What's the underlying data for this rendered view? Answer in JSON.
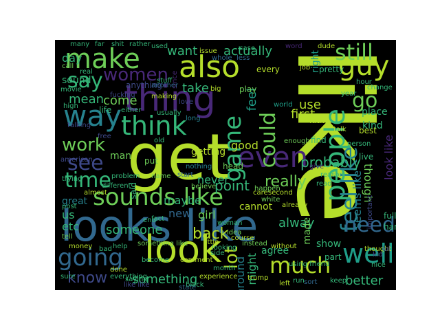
{
  "colors": {
    "background": "#000000",
    "palette_name": "viridis",
    "yellow_green": "#b5de2b",
    "green": "#6ece58",
    "teal_green": "#35b779",
    "teal": "#1f9e89",
    "blue_teal": "#26828e",
    "blue": "#31688e",
    "indigo": "#3e4989",
    "purple": "#482878",
    "dark_purple": "#440154"
  },
  "words": [
    {
      "text": "like",
      "color": "#b5de2b"
    },
    {
      "text": "get",
      "color": "#b5de2b"
    },
    {
      "text": "looks like",
      "color": "#31688e"
    },
    {
      "text": "thing",
      "color": "#482878"
    },
    {
      "text": "look",
      "color": "#b5de2b"
    },
    {
      "text": "make",
      "color": "#6ece58"
    },
    {
      "text": "also",
      "color": "#b5de2b"
    },
    {
      "text": "way",
      "color": "#26828e"
    },
    {
      "text": "people",
      "color": "#35b779"
    },
    {
      "text": "even",
      "color": "#482878"
    },
    {
      "text": "guy",
      "color": "#b5de2b"
    },
    {
      "text": "still",
      "color": "#6ece58"
    },
    {
      "text": "think",
      "color": "#35b779"
    },
    {
      "text": "sounds like",
      "color": "#6ece58"
    },
    {
      "text": "going",
      "color": "#31688e"
    },
    {
      "text": "well",
      "color": "#1f9e89"
    },
    {
      "text": "feel like",
      "color": "#26828e"
    },
    {
      "text": "need",
      "color": "#31688e"
    },
    {
      "text": "much",
      "color": "#b5de2b"
    },
    {
      "text": "game",
      "color": "#35b779"
    },
    {
      "text": "could",
      "color": "#6ece58"
    },
    {
      "text": "say",
      "color": "#35b779"
    },
    {
      "text": "women",
      "color": "#482878"
    },
    {
      "text": "see",
      "color": "#3e4989"
    },
    {
      "text": "time",
      "color": "#35b779"
    },
    {
      "text": "work",
      "color": "#6ece58"
    },
    {
      "text": "know",
      "color": "#3e4989"
    },
    {
      "text": "lot",
      "color": "#b5de2b"
    },
    {
      "text": "go",
      "color": "#6ece58"
    },
    {
      "text": "actually",
      "color": "#35b779"
    },
    {
      "text": "want",
      "color": "#35b779"
    },
    {
      "text": "something",
      "color": "#35b779"
    },
    {
      "text": "back",
      "color": "#b5de2b"
    },
    {
      "text": "point",
      "color": "#35b779"
    },
    {
      "text": "really",
      "color": "#6ece58"
    },
    {
      "text": "mean",
      "color": "#35b779"
    },
    {
      "text": "come",
      "color": "#6ece58"
    },
    {
      "text": "take",
      "color": "#35b779"
    },
    {
      "text": "feel",
      "color": "#1f9e89"
    },
    {
      "text": "use",
      "color": "#b5de2b"
    },
    {
      "text": "first",
      "color": "#b5de2b"
    },
    {
      "text": "probably",
      "color": "#35b779"
    },
    {
      "text": "though",
      "color": "#6ece58"
    },
    {
      "text": "look like",
      "color": "#482878"
    },
    {
      "text": "seems like",
      "color": "#26828e"
    },
    {
      "text": "better",
      "color": "#35b779"
    },
    {
      "text": "someone",
      "color": "#35b779"
    },
    {
      "text": "maybe",
      "color": "#35b779"
    },
    {
      "text": "never",
      "color": "#35b779"
    },
    {
      "text": "new",
      "color": "#31688e"
    },
    {
      "text": "girl",
      "color": "#6ece58"
    },
    {
      "text": "cannot",
      "color": "#b5de2b"
    },
    {
      "text": "alway",
      "color": "#35b779"
    },
    {
      "text": "good",
      "color": "#b5de2b"
    },
    {
      "text": "man",
      "color": "#6ece58"
    },
    {
      "text": "etc",
      "color": "#35b779"
    },
    {
      "text": "us",
      "color": "#35b779"
    },
    {
      "text": "day",
      "color": "#35b779"
    },
    {
      "text": "sound",
      "color": "#35b779"
    },
    {
      "text": "said",
      "color": "#35b779"
    },
    {
      "text": "around",
      "color": "#26828e"
    },
    {
      "text": "might",
      "color": "#35b779"
    },
    {
      "text": "made",
      "color": "#6ece58"
    },
    {
      "text": "show",
      "color": "#35b779"
    },
    {
      "text": "right",
      "color": "#1f9e89"
    },
    {
      "text": "agree",
      "color": "#35b779"
    },
    {
      "text": "getting",
      "color": "#b5de2b"
    },
    {
      "text": "anything",
      "color": "#3e4989"
    },
    {
      "text": "life",
      "color": "#35b779"
    },
    {
      "text": "place",
      "color": "#35b779"
    },
    {
      "text": "kind",
      "color": "#35b779"
    },
    {
      "text": "put",
      "color": "#6ece58"
    },
    {
      "text": "every",
      "color": "#b5de2b"
    },
    {
      "text": "pretty",
      "color": "#35b779"
    },
    {
      "text": "part",
      "color": "#35b779"
    },
    {
      "text": "nothing",
      "color": "#26828e"
    },
    {
      "text": "head",
      "color": "#6ece58"
    },
    {
      "text": "great",
      "color": "#26828e"
    },
    {
      "text": "live",
      "color": "#35b779"
    },
    {
      "text": "best",
      "color": "#b5de2b"
    },
    {
      "text": "find",
      "color": "#35b779"
    },
    {
      "text": "hard",
      "color": "#35b779"
    },
    {
      "text": "full",
      "color": "#35b779"
    },
    {
      "text": "since",
      "color": "#482878"
    },
    {
      "text": "whole",
      "color": "#31688e"
    },
    {
      "text": "less",
      "color": "#31688e"
    },
    {
      "text": "issue",
      "color": "#b5de2b"
    },
    {
      "text": "used",
      "color": "#35b779"
    },
    {
      "text": "many",
      "color": "#35b779"
    },
    {
      "text": "far",
      "color": "#35b779"
    },
    {
      "text": "shit",
      "color": "#35b779"
    },
    {
      "text": "rather",
      "color": "#35b779"
    },
    {
      "text": "dude",
      "color": "#b5de2b"
    },
    {
      "text": "word",
      "color": "#482878"
    },
    {
      "text": "hour",
      "color": "#35b779"
    },
    {
      "text": "change",
      "color": "#35b779"
    },
    {
      "text": "year",
      "color": "#35b779"
    },
    {
      "text": "job",
      "color": "#b5de2b"
    },
    {
      "text": "movie",
      "color": "#35b779"
    },
    {
      "text": "fucking",
      "color": "#3e4989"
    },
    {
      "text": "another",
      "color": "#31688e"
    },
    {
      "text": "making",
      "color": "#b5de2b"
    },
    {
      "text": "play",
      "color": "#6ece58"
    },
    {
      "text": "big",
      "color": "#b5de2b"
    },
    {
      "text": "world",
      "color": "#1f9e89"
    },
    {
      "text": "talk",
      "color": "#b5de2b"
    },
    {
      "text": "enough",
      "color": "#6ece58"
    },
    {
      "text": "fuck",
      "color": "#b5de2b"
    },
    {
      "text": "reason",
      "color": "#35b779"
    },
    {
      "text": "give",
      "color": "#482878"
    },
    {
      "text": "read",
      "color": "#35b779"
    },
    {
      "text": "person",
      "color": "#35b779"
    },
    {
      "text": "second",
      "color": "#b5de2b"
    },
    {
      "text": "care",
      "color": "#b5de2b"
    },
    {
      "text": "believe",
      "color": "#6ece58"
    },
    {
      "text": "almost",
      "color": "#b5de2b"
    },
    {
      "text": "problem",
      "color": "#35b779"
    },
    {
      "text": "different",
      "color": "#35b779"
    },
    {
      "text": "american",
      "color": "#3e4989"
    },
    {
      "text": "trying",
      "color": "#35b779"
    },
    {
      "text": "real",
      "color": "#35b779"
    },
    {
      "text": "call",
      "color": "#6ece58"
    },
    {
      "text": "stuff",
      "color": "#35b779"
    },
    {
      "text": "either",
      "color": "#35b779"
    },
    {
      "text": "high",
      "color": "#35b779"
    },
    {
      "text": "long",
      "color": "#26828e"
    },
    {
      "text": "usually",
      "color": "#35b779"
    },
    {
      "text": "old",
      "color": "#35b779"
    },
    {
      "text": "name",
      "color": "#6ece58"
    },
    {
      "text": "post",
      "color": "#35b779"
    },
    {
      "text": "tell",
      "color": "#6ece58"
    },
    {
      "text": "white",
      "color": "#6ece58"
    },
    {
      "text": "already",
      "color": "#b5de2b"
    },
    {
      "text": "woman",
      "color": "#35b779"
    },
    {
      "text": "idea",
      "color": "#6ece58"
    },
    {
      "text": "course",
      "color": "#b5de2b"
    },
    {
      "text": "instead",
      "color": "#6ece58"
    },
    {
      "text": "without",
      "color": "#b5de2b"
    },
    {
      "text": "using friend",
      "color": "#35b779"
    },
    {
      "text": "thought",
      "color": "#b5de2b"
    },
    {
      "text": "nice",
      "color": "#35b779"
    },
    {
      "text": "keep",
      "color": "#35b779"
    },
    {
      "text": "sort",
      "color": "#31688e"
    },
    {
      "text": "run",
      "color": "#35b779"
    },
    {
      "text": "left",
      "color": "#b5de2b"
    },
    {
      "text": "trump",
      "color": "#b5de2b"
    },
    {
      "text": "experience",
      "color": "#b5de2b"
    },
    {
      "text": "month",
      "color": "#35b779"
    },
    {
      "text": "comment",
      "color": "#b5de2b"
    },
    {
      "text": "black",
      "color": "#35b779"
    },
    {
      "text": "like like",
      "color": "#3e4989"
    },
    {
      "text": "saying",
      "color": "#35b779"
    },
    {
      "text": "done",
      "color": "#b5de2b"
    },
    {
      "text": "everything",
      "color": "#35b779"
    },
    {
      "text": "sure",
      "color": "#35b779"
    },
    {
      "text": "money",
      "color": "#b5de2b"
    },
    {
      "text": "bad",
      "color": "#35b779"
    },
    {
      "text": "help",
      "color": "#35b779"
    },
    {
      "text": "something like",
      "color": "#6ece58"
    },
    {
      "text": "little",
      "color": "#b5de2b"
    },
    {
      "text": "looking",
      "color": "#35b779"
    },
    {
      "text": "side",
      "color": "#35b779"
    },
    {
      "text": "fact",
      "color": "#35b779"
    },
    {
      "text": "happen",
      "color": "#6ece58"
    },
    {
      "text": "end",
      "color": "#35b779"
    },
    {
      "text": "important",
      "color": "#3e4989"
    },
    {
      "text": "lol",
      "color": "#3e4989"
    },
    {
      "text": "kid",
      "color": "#3e4989"
    },
    {
      "text": "case",
      "color": "#35b779"
    },
    {
      "text": "start",
      "color": "#31688e"
    },
    {
      "text": "become",
      "color": "#35b779"
    },
    {
      "text": "state",
      "color": "#31688e"
    },
    {
      "text": "free",
      "color": "#3e4989"
    },
    {
      "text": "talking",
      "color": "#3e4989"
    },
    {
      "text": "love",
      "color": "#3e4989"
    }
  ]
}
